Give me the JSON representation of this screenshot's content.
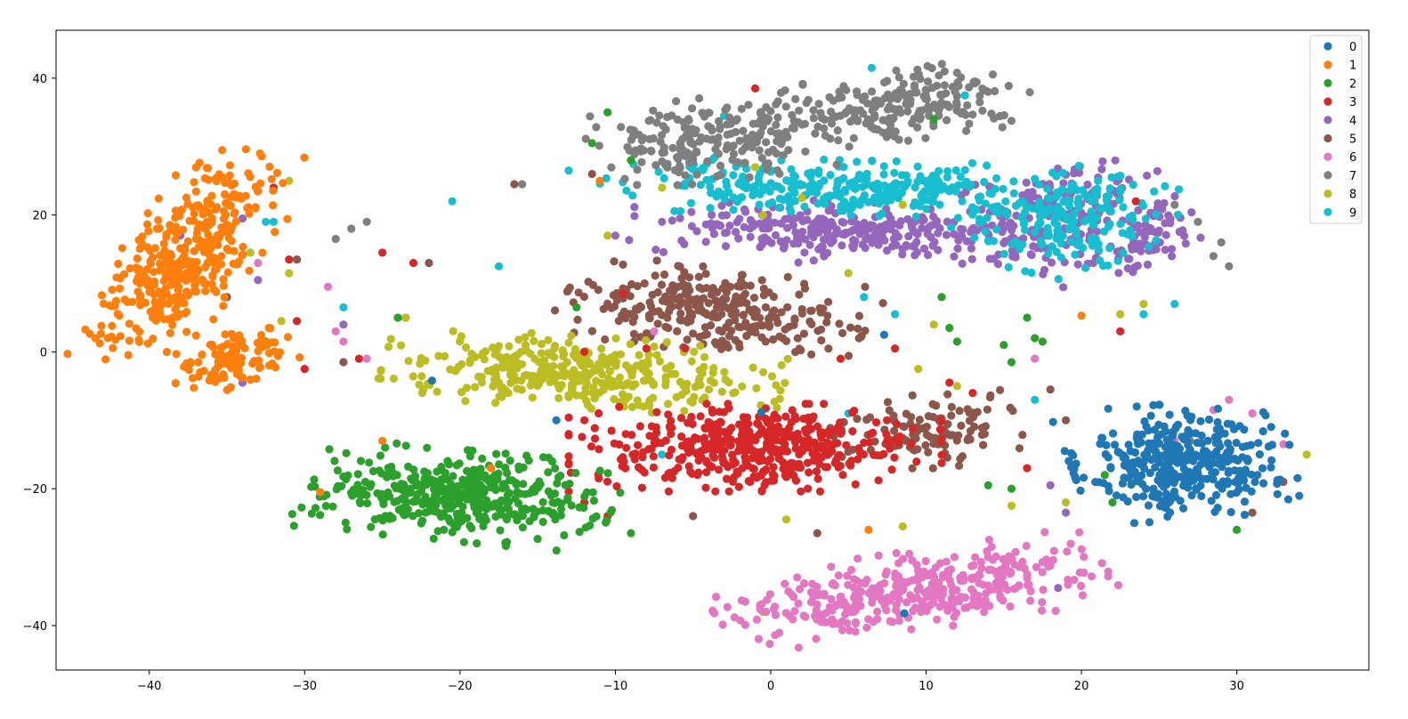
{
  "chart_data": {
    "type": "scatter",
    "title": "",
    "xlabel": "",
    "ylabel": "",
    "xlim": [
      -46,
      38.5
    ],
    "ylim": [
      -46.5,
      47
    ],
    "x_ticks": [
      -40,
      -30,
      -20,
      -10,
      0,
      10,
      20,
      30
    ],
    "y_ticks": [
      -40,
      -20,
      0,
      20,
      40
    ],
    "x_tick_labels": [
      "−40",
      "−30",
      "−20",
      "−10",
      "0",
      "10",
      "20",
      "30"
    ],
    "y_tick_labels": [
      "−40",
      "−20",
      "0",
      "20",
      "40"
    ],
    "grid": false,
    "legend_position": "top-right",
    "legend": [
      "0",
      "1",
      "2",
      "3",
      "4",
      "5",
      "6",
      "7",
      "8",
      "9"
    ],
    "series_colors": [
      "#1f77b4",
      "#ff7f0e",
      "#2ca02c",
      "#d62728",
      "#9467bd",
      "#8c564b",
      "#e377c2",
      "#7f7f7f",
      "#bcbd22",
      "#17becf"
    ],
    "series": [
      {
        "name": "0",
        "clusters": [
          {
            "cx": 26.5,
            "cy": -16,
            "sx": 3.6,
            "sy": 4.2,
            "rot": 10,
            "n": 380
          }
        ],
        "outliers": [
          [
            -21.8,
            -4.2
          ],
          [
            -13.8,
            -10.0
          ],
          [
            8.6,
            -38.2
          ],
          [
            7.3,
            2.5
          ],
          [
            -0.6,
            -8.8
          ]
        ]
      },
      {
        "name": "1",
        "clusters": [
          {
            "cx": -37.5,
            "cy": 14,
            "sx": 2.2,
            "sy": 8.0,
            "rot": -18,
            "n": 380
          },
          {
            "cx": -34.5,
            "cy": -1,
            "sx": 1.8,
            "sy": 2.5,
            "rot": -30,
            "n": 110
          }
        ],
        "outliers": [
          [
            -25.0,
            -13.0
          ],
          [
            -29.0,
            -20.5
          ],
          [
            -18.0,
            -17.0
          ],
          [
            6.3,
            -26.0
          ],
          [
            20.0,
            5.3
          ],
          [
            -11.0,
            25.0
          ]
        ]
      },
      {
        "name": "2",
        "clusters": [
          {
            "cx": -20.0,
            "cy": -21.0,
            "sx": 5.0,
            "sy": 3.3,
            "rot": -12,
            "n": 420
          }
        ],
        "outliers": [
          [
            -10.5,
            35.0
          ],
          [
            -11.5,
            30.5
          ],
          [
            -9.0,
            28.0
          ],
          [
            10.5,
            34.0
          ],
          [
            12.0,
            1.5
          ],
          [
            11.0,
            8.0
          ],
          [
            15.0,
            1.0
          ],
          [
            15.5,
            -1.5
          ],
          [
            16.5,
            5.0
          ],
          [
            17.5,
            1.5
          ],
          [
            14.0,
            -19.5
          ],
          [
            15.5,
            -20.0
          ],
          [
            25.5,
            -18.0
          ],
          [
            22.0,
            -22.0
          ],
          [
            30.0,
            -26.0
          ],
          [
            -9.0,
            -26.5
          ],
          [
            -32.5,
            1.5
          ],
          [
            -24.0,
            5.0
          ],
          [
            -12.5,
            6.5
          ],
          [
            21.5,
            -18.0
          ],
          [
            11.5,
            3.5
          ],
          [
            17.0,
            2.0
          ]
        ]
      },
      {
        "name": "3",
        "clusters": [
          {
            "cx": -1.0,
            "cy": -14.0,
            "sx": 6.0,
            "sy": 3.2,
            "rot": 0,
            "n": 440
          }
        ],
        "outliers": [
          [
            -33.0,
            23.5
          ],
          [
            -32.0,
            24.0
          ],
          [
            -31.0,
            13.5
          ],
          [
            -30.5,
            4.5
          ],
          [
            -30.0,
            -2.5
          ],
          [
            -26.5,
            -1.0
          ],
          [
            -25.0,
            14.5
          ],
          [
            -23.0,
            13.0
          ],
          [
            -8.0,
            0.5
          ],
          [
            -5.5,
            0.5
          ],
          [
            -1.0,
            38.5
          ],
          [
            16.5,
            -17.0
          ],
          [
            22.5,
            3.0
          ],
          [
            23.5,
            22.0
          ],
          [
            -12.0,
            0.0
          ],
          [
            -13.0,
            -12.0
          ],
          [
            -10.5,
            -24.0
          ],
          [
            -12.0,
            -22.0
          ],
          [
            4.5,
            -1.0
          ],
          [
            8.0,
            0.5
          ],
          [
            11.5,
            -4.5
          ],
          [
            13.0,
            -6.0
          ],
          [
            -9.5,
            8.5
          ]
        ]
      },
      {
        "name": "4",
        "clusters": [
          {
            "cx": 4.0,
            "cy": 17.5,
            "sx": 6.5,
            "sy": 2.4,
            "rot": -4,
            "n": 260
          },
          {
            "cx": 18.0,
            "cy": 20.0,
            "sx": 3.2,
            "sy": 4.5,
            "rot": -30,
            "n": 180
          },
          {
            "cx": 24.0,
            "cy": 16.0,
            "sx": 1.8,
            "sy": 3.5,
            "rot": -10,
            "n": 70
          }
        ],
        "outliers": [
          [
            -38.0,
            17.0
          ],
          [
            -34.0,
            19.5
          ],
          [
            -33.0,
            10.5
          ],
          [
            -34.0,
            -4.5
          ],
          [
            -27.5,
            4.0
          ],
          [
            -10.0,
            17.0
          ],
          [
            -7.0,
            19.0
          ],
          [
            18.5,
            -34.5
          ],
          [
            18.0,
            -19.5
          ],
          [
            19.0,
            -23.5
          ]
        ]
      },
      {
        "name": "5",
        "clusters": [
          {
            "cx": -3.5,
            "cy": 6.0,
            "sx": 5.0,
            "sy": 3.0,
            "rot": -16,
            "n": 300
          },
          {
            "cx": 10.0,
            "cy": -11.5,
            "sx": 3.0,
            "sy": 2.8,
            "rot": 10,
            "n": 120
          }
        ],
        "outliers": [
          [
            -35.0,
            8.0
          ],
          [
            -30.5,
            13.5
          ],
          [
            -27.5,
            -1.5
          ],
          [
            -22.0,
            13.0
          ],
          [
            -16.5,
            24.5
          ],
          [
            -11.5,
            26.0
          ],
          [
            19.0,
            -10.0
          ],
          [
            18.0,
            -5.5
          ],
          [
            33.0,
            -19.0
          ],
          [
            31.0,
            -23.5
          ],
          [
            3.0,
            -26.5
          ],
          [
            -5.0,
            -24.0
          ]
        ]
      },
      {
        "name": "6",
        "clusters": [
          {
            "cx": 9.0,
            "cy": -35.0,
            "sx": 6.5,
            "sy": 2.8,
            "rot": 18,
            "n": 380
          }
        ],
        "outliers": [
          [
            -28.5,
            9.5
          ],
          [
            -28.0,
            3.0
          ],
          [
            -27.5,
            1.5
          ],
          [
            -26.0,
            -1.0
          ],
          [
            -33.0,
            13.0
          ],
          [
            -7.5,
            3.0
          ],
          [
            17.0,
            -1.0
          ],
          [
            28.5,
            -8.5
          ],
          [
            29.5,
            -7.0
          ],
          [
            31.0,
            -9.0
          ],
          [
            33.0,
            -13.5
          ],
          [
            26.0,
            -13.0
          ]
        ]
      },
      {
        "name": "7",
        "clusters": [
          {
            "cx": -4.0,
            "cy": 31.0,
            "sx": 3.8,
            "sy": 3.0,
            "rot": 15,
            "n": 200
          },
          {
            "cx": 8.5,
            "cy": 36.0,
            "sx": 4.5,
            "sy": 2.5,
            "rot": 18,
            "n": 220
          }
        ],
        "outliers": [
          [
            -28.0,
            16.5
          ],
          [
            -27.0,
            18.0
          ],
          [
            -26.0,
            19.0
          ],
          [
            -16.0,
            24.5
          ],
          [
            -35.0,
            8.0
          ],
          [
            -23.5,
            5.0
          ],
          [
            28.5,
            14.0
          ],
          [
            29.0,
            16.0
          ],
          [
            29.5,
            12.5
          ],
          [
            27.5,
            19.0
          ],
          [
            26.0,
            21.5
          ],
          [
            27.0,
            -13.0
          ],
          [
            14.0,
            38.0
          ]
        ]
      },
      {
        "name": "8",
        "clusters": [
          {
            "cx": -12.0,
            "cy": -3.0,
            "sx": 6.5,
            "sy": 2.6,
            "rot": -8,
            "n": 360
          }
        ],
        "outliers": [
          [
            -31.0,
            25.0
          ],
          [
            -31.0,
            11.5
          ],
          [
            -31.5,
            4.5
          ],
          [
            -33.5,
            14.5
          ],
          [
            -23.5,
            5.0
          ],
          [
            -10.5,
            17.0
          ],
          [
            -7.0,
            24.0
          ],
          [
            -1.0,
            27.0
          ],
          [
            -0.5,
            20.0
          ],
          [
            2.0,
            22.5
          ],
          [
            8.5,
            21.5
          ],
          [
            22.5,
            5.5
          ],
          [
            24.0,
            7.0
          ],
          [
            34.5,
            -15.0
          ],
          [
            15.5,
            -22.5
          ],
          [
            19.0,
            -22.0
          ],
          [
            1.0,
            -24.5
          ],
          [
            -0.5,
            -38.0
          ],
          [
            8.5,
            -25.5
          ],
          [
            5.0,
            11.5
          ],
          [
            10.5,
            4.0
          ],
          [
            9.5,
            -2.5
          ],
          [
            12.0,
            -5.0
          ]
        ]
      },
      {
        "name": "9",
        "clusters": [
          {
            "cx": 5.0,
            "cy": 24.0,
            "sx": 8.0,
            "sy": 2.0,
            "rot": -3,
            "n": 320
          },
          {
            "cx": 19.0,
            "cy": 19.0,
            "sx": 3.2,
            "sy": 3.8,
            "rot": -28,
            "n": 170
          }
        ],
        "outliers": [
          [
            -32.5,
            19.0
          ],
          [
            -32.0,
            19.0
          ],
          [
            -33.5,
            14.5
          ],
          [
            -27.5,
            6.5
          ],
          [
            -20.5,
            22.0
          ],
          [
            -17.5,
            12.5
          ],
          [
            -13.0,
            26.5
          ],
          [
            6.5,
            41.5
          ],
          [
            12.5,
            37.5
          ],
          [
            8.0,
            5.5
          ],
          [
            6.0,
            8.0
          ],
          [
            17.0,
            -7.0
          ],
          [
            5.0,
            -9.0
          ],
          [
            -5.0,
            -14.5
          ],
          [
            -7.0,
            -15.0
          ],
          [
            -3.0,
            34.5
          ],
          [
            24.0,
            5.5
          ],
          [
            26.0,
            7.0
          ]
        ]
      }
    ]
  }
}
